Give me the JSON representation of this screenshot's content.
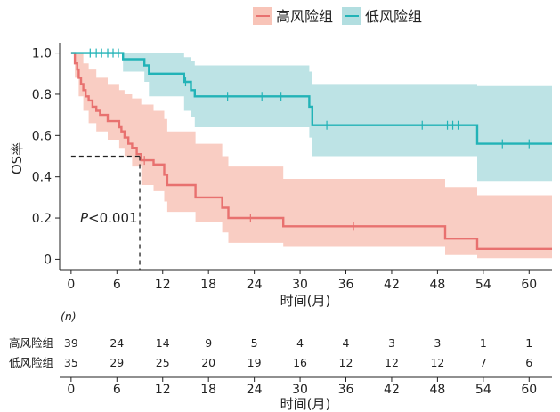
{
  "legend": {
    "high": "高风险组",
    "low": "低风险组"
  },
  "colors": {
    "high_line": "#E8716F",
    "high_band": "#F8C4B8",
    "low_line": "#22B3B7",
    "low_band": "#B2DEE0"
  },
  "p_value": {
    "symbol": "P",
    "text": "<0.001"
  },
  "risk_table": {
    "header": "(n)",
    "rows": [
      {
        "label": "高风险组",
        "values": [
          39,
          24,
          14,
          9,
          5,
          4,
          4,
          3,
          3,
          1,
          1
        ]
      },
      {
        "label": "低风险组",
        "values": [
          35,
          29,
          25,
          20,
          19,
          16,
          12,
          12,
          12,
          7,
          6
        ]
      }
    ],
    "xlabel": "时间(月)",
    "ticks": [
      0,
      6,
      12,
      18,
      24,
      30,
      36,
      42,
      48,
      54,
      60
    ]
  },
  "chart_data": {
    "type": "line",
    "subtype": "kaplan-meier",
    "xlabel": "时间(月)",
    "ylabel": "OS率",
    "xlim": [
      -1.5,
      63
    ],
    "ylim": [
      -0.05,
      1.05
    ],
    "xticks": [
      0,
      6,
      12,
      18,
      24,
      30,
      36,
      42,
      48,
      54,
      60
    ],
    "yticks": [
      0,
      0.2,
      0.4,
      0.6,
      0.8,
      1.0
    ],
    "ytick_labels": [
      "0",
      "0.2",
      "0.4",
      "0.6",
      "0.8",
      "1.0"
    ],
    "median_line": {
      "x": 9,
      "y": 0.5
    },
    "series": [
      {
        "name": "高风险组",
        "color_key": "high",
        "steps": [
          [
            0,
            1.0
          ],
          [
            0.5,
            0.95
          ],
          [
            0.8,
            0.92
          ],
          [
            1.0,
            0.88
          ],
          [
            1.3,
            0.85
          ],
          [
            1.6,
            0.82
          ],
          [
            1.9,
            0.79
          ],
          [
            2.3,
            0.77
          ],
          [
            2.8,
            0.74
          ],
          [
            3.3,
            0.72
          ],
          [
            3.8,
            0.7
          ],
          [
            4.8,
            0.67
          ],
          [
            6.3,
            0.64
          ],
          [
            6.6,
            0.62
          ],
          [
            7.0,
            0.59
          ],
          [
            7.5,
            0.56
          ],
          [
            8.0,
            0.54
          ],
          [
            8.6,
            0.51
          ],
          [
            9.2,
            0.48
          ],
          [
            10.8,
            0.46
          ],
          [
            12.2,
            0.41
          ],
          [
            12.6,
            0.36
          ],
          [
            16.3,
            0.3
          ],
          [
            19.8,
            0.25
          ],
          [
            20.6,
            0.2
          ],
          [
            27.8,
            0.16
          ],
          [
            49.0,
            0.1
          ],
          [
            53.2,
            0.05
          ],
          [
            63,
            0.05
          ]
        ],
        "upper": [
          [
            0,
            1.0
          ],
          [
            0.5,
            1.0
          ],
          [
            1.0,
            1.0
          ],
          [
            1.6,
            0.95
          ],
          [
            2.3,
            0.92
          ],
          [
            3.3,
            0.88
          ],
          [
            4.8,
            0.85
          ],
          [
            6.3,
            0.82
          ],
          [
            7.0,
            0.8
          ],
          [
            8.0,
            0.78
          ],
          [
            9.2,
            0.75
          ],
          [
            10.8,
            0.72
          ],
          [
            12.2,
            0.68
          ],
          [
            12.6,
            0.62
          ],
          [
            16.3,
            0.56
          ],
          [
            19.8,
            0.5
          ],
          [
            20.6,
            0.45
          ],
          [
            27.8,
            0.39
          ],
          [
            49.0,
            0.35
          ],
          [
            53.2,
            0.31
          ],
          [
            63,
            0.31
          ]
        ],
        "lower": [
          [
            0,
            1.0
          ],
          [
            0.5,
            0.88
          ],
          [
            1.0,
            0.79
          ],
          [
            1.6,
            0.72
          ],
          [
            2.3,
            0.66
          ],
          [
            3.3,
            0.62
          ],
          [
            4.8,
            0.58
          ],
          [
            6.3,
            0.54
          ],
          [
            7.0,
            0.5
          ],
          [
            8.0,
            0.45
          ],
          [
            9.2,
            0.36
          ],
          [
            10.8,
            0.33
          ],
          [
            12.2,
            0.28
          ],
          [
            12.6,
            0.23
          ],
          [
            16.3,
            0.18
          ],
          [
            19.8,
            0.13
          ],
          [
            20.6,
            0.08
          ],
          [
            27.8,
            0.06
          ],
          [
            49.0,
            0.02
          ],
          [
            53.2,
            0.005
          ],
          [
            63,
            0.005
          ]
        ],
        "censor_x": [
          9.6,
          23.5,
          37.0
        ]
      },
      {
        "name": "低风险组",
        "color_key": "low",
        "steps": [
          [
            0,
            1.0
          ],
          [
            6.8,
            0.97
          ],
          [
            9.6,
            0.94
          ],
          [
            10.2,
            0.9
          ],
          [
            14.8,
            0.86
          ],
          [
            15.7,
            0.82
          ],
          [
            16.2,
            0.79
          ],
          [
            31.2,
            0.74
          ],
          [
            31.6,
            0.65
          ],
          [
            53.2,
            0.56
          ],
          [
            63,
            0.56
          ]
        ],
        "upper": [
          [
            0,
            1.0
          ],
          [
            6.8,
            1.0
          ],
          [
            9.6,
            1.0
          ],
          [
            10.2,
            1.0
          ],
          [
            14.8,
            0.98
          ],
          [
            15.7,
            0.96
          ],
          [
            16.2,
            0.94
          ],
          [
            31.2,
            0.91
          ],
          [
            31.6,
            0.85
          ],
          [
            53.2,
            0.84
          ],
          [
            63,
            0.84
          ]
        ],
        "lower": [
          [
            0,
            1.0
          ],
          [
            6.8,
            0.91
          ],
          [
            9.6,
            0.86
          ],
          [
            10.2,
            0.79
          ],
          [
            14.8,
            0.72
          ],
          [
            15.7,
            0.69
          ],
          [
            16.2,
            0.64
          ],
          [
            31.2,
            0.59
          ],
          [
            31.6,
            0.5
          ],
          [
            53.2,
            0.38
          ],
          [
            63,
            0.38
          ]
        ],
        "censor_x": [
          2.5,
          3.3,
          4.0,
          4.8,
          5.5,
          6.2,
          15.0,
          20.5,
          25.0,
          27.5,
          33.5,
          46.0,
          49.3,
          50.0,
          50.7,
          56.5,
          60.0
        ]
      }
    ]
  }
}
